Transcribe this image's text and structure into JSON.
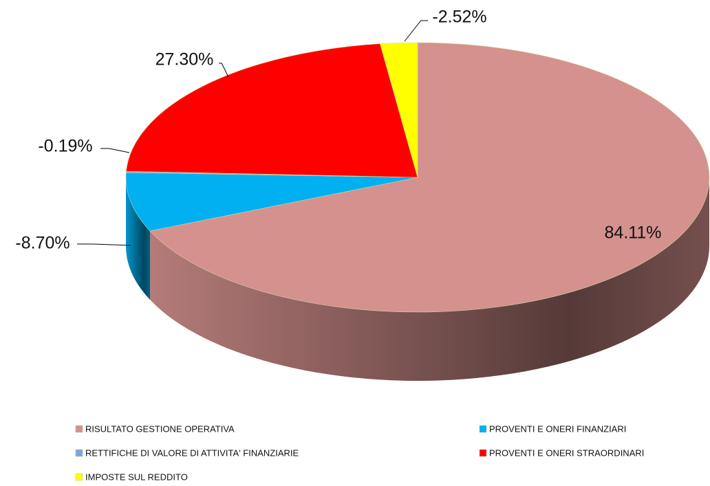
{
  "chart_data": {
    "type": "pie",
    "categories": [
      "RISULTATO GESTIONE OPERATIVA",
      "PROVENTI E ONERI FINANZIARI",
      "RETTIFICHE DI VALORE DI ATTIVITA' FINANZIARIE",
      "PROVENTI E ONERI STRAORDINARI",
      "IMPOSTE SUL REDDITO"
    ],
    "values": [
      84.11,
      -8.7,
      -0.19,
      27.3,
      -2.52
    ],
    "value_labels": [
      "84.11%",
      "-8.70%",
      "-0.19%",
      "27.30%",
      "-2.52%"
    ],
    "colors": [
      "#d4918e",
      "#00b0f0",
      "#7ea6d8",
      "#ff0000",
      "#ffff00"
    ],
    "legend": "bottom"
  }
}
